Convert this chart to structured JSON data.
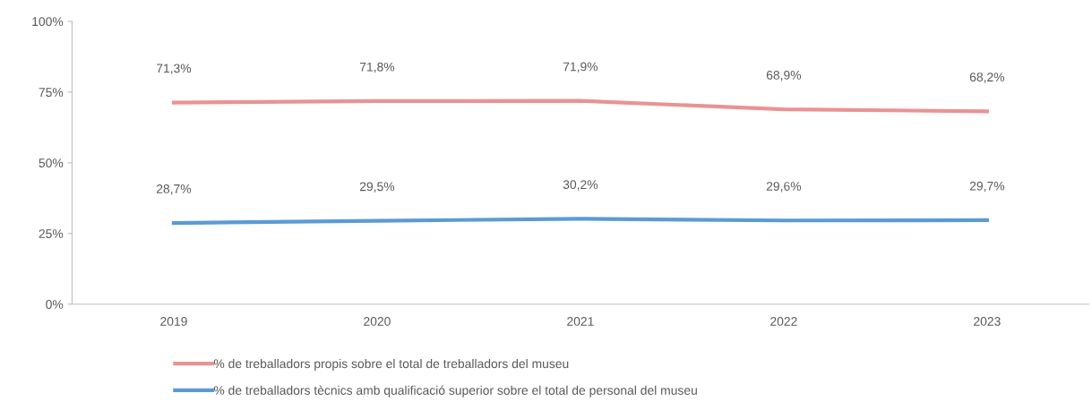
{
  "chart_data": {
    "type": "line",
    "categories": [
      "2019",
      "2020",
      "2021",
      "2022",
      "2023"
    ],
    "series": [
      {
        "name": "% de treballadors propis sobre el total de treballadors del museu",
        "color": "#e99393",
        "values": [
          71.3,
          71.8,
          71.9,
          68.9,
          68.2
        ],
        "value_labels": [
          "71,3%",
          "71,8%",
          "71,9%",
          "68,9%",
          "68,2%"
        ]
      },
      {
        "name": "% de treballadors tècnics amb qualificació superior sobre el total de personal del museu",
        "color": "#5b9bd5",
        "values": [
          28.7,
          29.5,
          30.2,
          29.6,
          29.7
        ],
        "value_labels": [
          "28,7%",
          "29,5%",
          "30,2%",
          "29,6%",
          "29,7%"
        ]
      }
    ],
    "ylim": [
      0,
      100
    ],
    "yticks": [
      {
        "value": 0,
        "label": "0%"
      },
      {
        "value": 25,
        "label": "25%"
      },
      {
        "value": 50,
        "label": "50%"
      },
      {
        "value": 75,
        "label": "75%"
      },
      {
        "value": 100,
        "label": "100%"
      }
    ],
    "grid": false,
    "legend": "bottom",
    "marker": "none",
    "line_style": "solid"
  }
}
